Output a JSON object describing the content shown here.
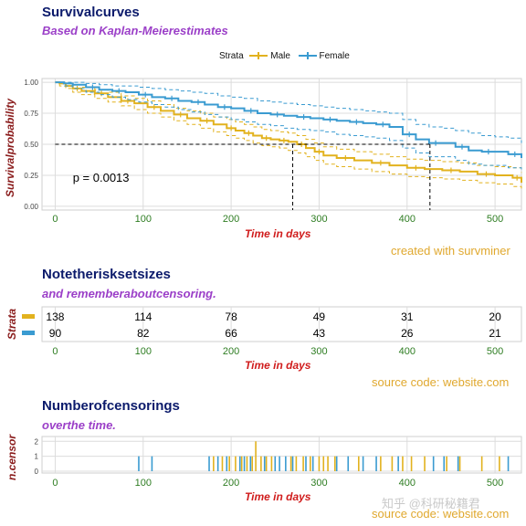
{
  "colors": {
    "male": "#e2b21e",
    "female": "#3a9bd1",
    "grid": "#dcdcdc",
    "title": "#0b1a6b",
    "subtitle": "#9b3fc8",
    "caption": "#e0a82e",
    "axis_label": "#d01c1c",
    "tick_x": "#2e7d22"
  },
  "watermark": "知乎 @科研秘籍君",
  "chart_data": [
    {
      "type": "line",
      "title": "Survivalcurves",
      "subtitle": "Based on Kaplan-Meierestimates",
      "xlabel": "Time in days",
      "ylabel": "Survivalprobability",
      "caption": "created with survminer",
      "xlim": [
        -15,
        530
      ],
      "ylim": [
        -0.03,
        1.03
      ],
      "x_ticks": [
        0,
        100,
        200,
        300,
        400,
        500
      ],
      "y_ticks": [
        0.0,
        0.25,
        0.5,
        0.75,
        1.0
      ],
      "y_tick_labels": [
        "0.00",
        "0.25",
        "0.50",
        "0.75",
        "1.00"
      ],
      "grid": true,
      "legend": {
        "title": "Strata",
        "position": "top",
        "entries": [
          "Male",
          "Female"
        ]
      },
      "pvalue_text": "p = 0.0013",
      "median_survival": [
        {
          "series": "Male",
          "x": 270
        },
        {
          "series": "Female",
          "x": 426
        }
      ],
      "series": [
        {
          "name": "Male",
          "x": [
            0,
            5,
            12,
            20,
            30,
            45,
            60,
            75,
            90,
            105,
            120,
            135,
            150,
            165,
            180,
            195,
            205,
            215,
            225,
            235,
            245,
            255,
            265,
            275,
            285,
            295,
            305,
            320,
            340,
            360,
            380,
            400,
            420,
            440,
            460,
            480,
            500,
            520,
            530
          ],
          "y": [
            1.0,
            0.99,
            0.97,
            0.95,
            0.93,
            0.91,
            0.88,
            0.85,
            0.83,
            0.8,
            0.77,
            0.74,
            0.71,
            0.69,
            0.66,
            0.63,
            0.61,
            0.59,
            0.57,
            0.55,
            0.54,
            0.53,
            0.52,
            0.5,
            0.47,
            0.44,
            0.41,
            0.39,
            0.37,
            0.35,
            0.33,
            0.31,
            0.3,
            0.29,
            0.28,
            0.26,
            0.25,
            0.23,
            0.19
          ],
          "lower": [
            1.0,
            0.97,
            0.95,
            0.92,
            0.9,
            0.87,
            0.84,
            0.81,
            0.78,
            0.75,
            0.72,
            0.69,
            0.66,
            0.63,
            0.6,
            0.57,
            0.55,
            0.53,
            0.51,
            0.49,
            0.48,
            0.47,
            0.45,
            0.43,
            0.4,
            0.37,
            0.34,
            0.32,
            0.3,
            0.28,
            0.26,
            0.24,
            0.23,
            0.22,
            0.21,
            0.19,
            0.18,
            0.16,
            0.13
          ],
          "upper": [
            1.0,
            1.0,
            0.99,
            0.98,
            0.96,
            0.94,
            0.92,
            0.89,
            0.87,
            0.85,
            0.82,
            0.79,
            0.77,
            0.75,
            0.72,
            0.7,
            0.68,
            0.66,
            0.64,
            0.62,
            0.61,
            0.6,
            0.59,
            0.57,
            0.54,
            0.51,
            0.48,
            0.46,
            0.44,
            0.42,
            0.4,
            0.38,
            0.37,
            0.36,
            0.35,
            0.33,
            0.32,
            0.31,
            0.27
          ]
        },
        {
          "name": "Female",
          "x": [
            0,
            10,
            20,
            35,
            50,
            65,
            80,
            95,
            110,
            125,
            140,
            155,
            170,
            185,
            200,
            215,
            230,
            245,
            260,
            275,
            290,
            305,
            320,
            335,
            350,
            365,
            380,
            395,
            410,
            425,
            440,
            455,
            470,
            485,
            500,
            515,
            530
          ],
          "y": [
            1.0,
            0.99,
            0.98,
            0.96,
            0.94,
            0.93,
            0.92,
            0.9,
            0.88,
            0.87,
            0.85,
            0.84,
            0.82,
            0.8,
            0.79,
            0.77,
            0.75,
            0.74,
            0.73,
            0.72,
            0.71,
            0.7,
            0.69,
            0.68,
            0.67,
            0.66,
            0.64,
            0.58,
            0.54,
            0.51,
            0.51,
            0.48,
            0.45,
            0.44,
            0.44,
            0.42,
            0.39
          ],
          "lower": [
            1.0,
            0.97,
            0.95,
            0.92,
            0.9,
            0.88,
            0.86,
            0.84,
            0.82,
            0.8,
            0.78,
            0.76,
            0.74,
            0.72,
            0.7,
            0.68,
            0.66,
            0.65,
            0.63,
            0.62,
            0.61,
            0.6,
            0.58,
            0.57,
            0.56,
            0.55,
            0.53,
            0.47,
            0.43,
            0.4,
            0.4,
            0.37,
            0.34,
            0.33,
            0.33,
            0.31,
            0.28
          ],
          "upper": [
            1.0,
            1.0,
            1.0,
            0.99,
            0.98,
            0.97,
            0.97,
            0.96,
            0.95,
            0.94,
            0.93,
            0.92,
            0.91,
            0.89,
            0.88,
            0.87,
            0.85,
            0.84,
            0.83,
            0.82,
            0.81,
            0.8,
            0.79,
            0.78,
            0.77,
            0.76,
            0.75,
            0.7,
            0.66,
            0.64,
            0.63,
            0.61,
            0.59,
            0.57,
            0.56,
            0.55,
            0.51
          ]
        }
      ]
    },
    {
      "type": "table",
      "title": "Notetherisksetsizes",
      "subtitle": "and rememberaboutcensoring.",
      "xlabel": "Time in days",
      "ylabel": "Strata",
      "caption": "source code: website.com",
      "x_ticks": [
        0,
        100,
        200,
        300,
        400,
        500
      ],
      "rows": [
        {
          "name": "Male",
          "values": [
            138,
            114,
            78,
            49,
            31,
            20
          ]
        },
        {
          "name": "Female",
          "values": [
            90,
            82,
            66,
            43,
            26,
            21
          ]
        }
      ]
    },
    {
      "type": "bar",
      "title": "Numberofcensorings",
      "subtitle": "overthe time.",
      "xlabel": "Time in days",
      "ylabel": "n.censor",
      "caption": "source code: website.com",
      "x_ticks": [
        0,
        100,
        200,
        300,
        400,
        500
      ],
      "y_ticks": [
        0,
        1,
        2
      ],
      "ylim": [
        0,
        2.2
      ],
      "series": [
        {
          "name": "Male",
          "x": [
            180,
            190,
            198,
            205,
            212,
            218,
            224,
            228,
            234,
            240,
            246,
            268,
            274,
            282,
            290,
            300,
            305,
            310,
            318,
            345,
            370,
            383,
            395,
            405,
            420,
            445,
            460,
            485,
            505
          ],
          "values": [
            1,
            1,
            1,
            1,
            1,
            1,
            1,
            2,
            1,
            1,
            1,
            1,
            1,
            1,
            1,
            1,
            1,
            1,
            1,
            1,
            1,
            1,
            1,
            1,
            1,
            1,
            1,
            1,
            1
          ]
        },
        {
          "name": "Female",
          "x": [
            95,
            110,
            175,
            185,
            195,
            210,
            215,
            222,
            238,
            250,
            255,
            262,
            270,
            285,
            293,
            320,
            333,
            350,
            365,
            390,
            430,
            442,
            458,
            515
          ],
          "values": [
            1,
            1,
            1,
            1,
            1,
            1,
            1,
            1,
            1,
            1,
            1,
            1,
            1,
            1,
            1,
            1,
            1,
            1,
            1,
            1,
            1,
            1,
            1,
            1
          ]
        }
      ]
    }
  ]
}
